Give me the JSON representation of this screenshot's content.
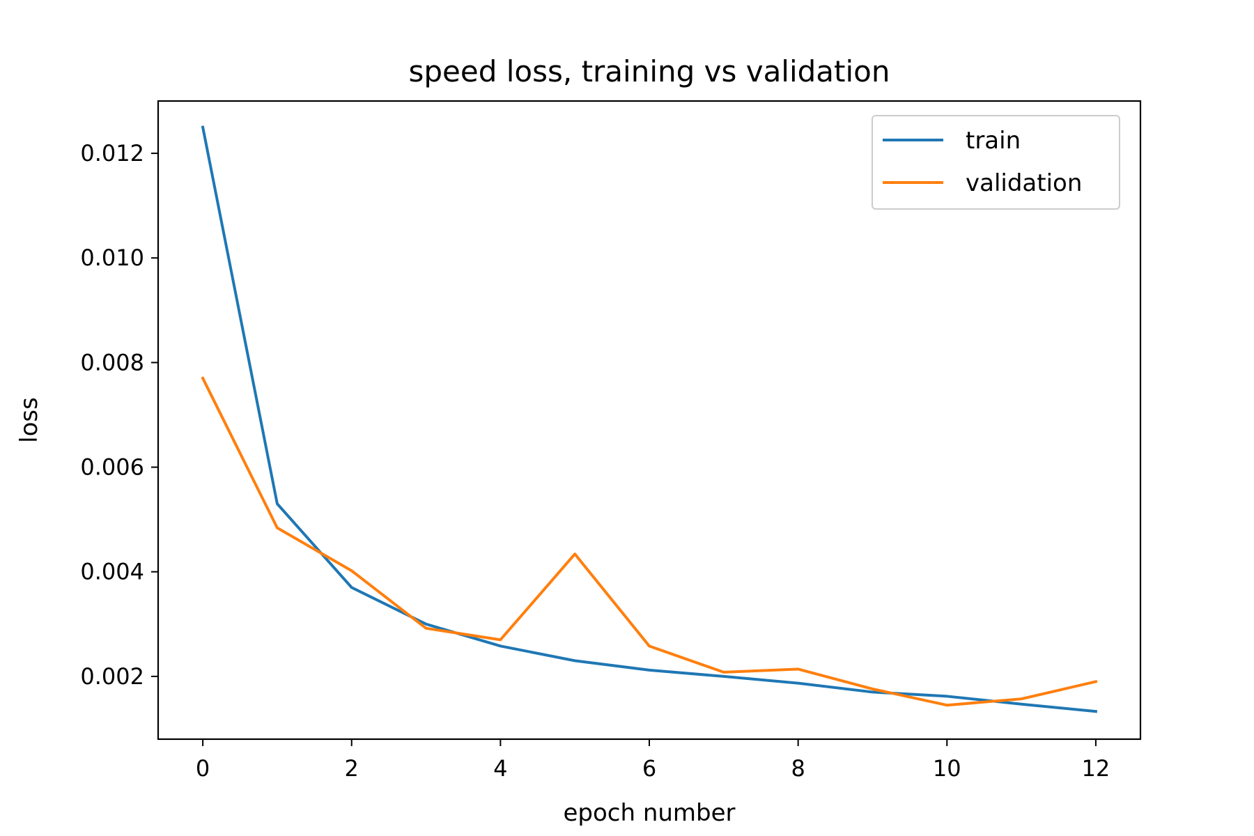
{
  "chart_data": {
    "type": "line",
    "title": "speed loss, training vs validation",
    "xlabel": "epoch number",
    "ylabel": "loss",
    "xlim": [
      -0.6,
      12.6
    ],
    "ylim": [
      0.0008,
      0.013
    ],
    "xticks": [
      0,
      2,
      4,
      6,
      8,
      10,
      12
    ],
    "xtick_labels": [
      "0",
      "2",
      "4",
      "6",
      "8",
      "10",
      "12"
    ],
    "yticks": [
      0.002,
      0.004,
      0.006,
      0.008,
      0.01,
      0.012
    ],
    "ytick_labels": [
      "0.002",
      "0.004",
      "0.006",
      "0.008",
      "0.010",
      "0.012"
    ],
    "grid": false,
    "legend_position": "top-right",
    "x": [
      0,
      1,
      2,
      3,
      4,
      5,
      6,
      7,
      8,
      9,
      10,
      11,
      12
    ],
    "series": [
      {
        "name": "train",
        "color": "#1f77b4",
        "values": [
          0.0125,
          0.0053,
          0.0037,
          0.003,
          0.00258,
          0.0023,
          0.00212,
          0.002,
          0.00187,
          0.0017,
          0.00162,
          0.00147,
          0.00133
        ]
      },
      {
        "name": "validation",
        "color": "#ff7f0e",
        "values": [
          0.0077,
          0.00484,
          0.00402,
          0.00292,
          0.0027,
          0.00434,
          0.00258,
          0.00208,
          0.00214,
          0.00176,
          0.00145,
          0.00157,
          0.0019
        ]
      }
    ]
  }
}
